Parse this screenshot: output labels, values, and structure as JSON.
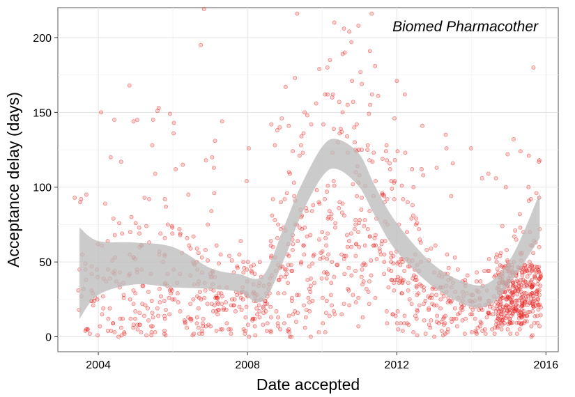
{
  "chart_data": {
    "type": "scatter",
    "title": "",
    "annotation": "Biomed Pharmacother",
    "xlabel": "Date accepted",
    "ylabel": "Acceptance delay (days)",
    "xlim": [
      "2002-12-01",
      "2016-05-01"
    ],
    "ylim": [
      -10,
      220
    ],
    "x_ticks": [
      "2004-01-01",
      "2008-01-01",
      "2012-01-01",
      "2016-01-01"
    ],
    "x_tick_labels": [
      "2004",
      "2008",
      "2012",
      "2016"
    ],
    "y_ticks": [
      0,
      50,
      100,
      150,
      200
    ],
    "y_tick_labels": [
      "0",
      "50",
      "100",
      "150",
      "200"
    ],
    "grid": true,
    "point_color": "#e8201e",
    "point_alpha": 0.2,
    "smooth_fill": "#bdbdbd",
    "smooth_band": [
      {
        "x": "2003-07-01",
        "lo": 12,
        "hi": 73
      },
      {
        "x": "2004-01-01",
        "lo": 28,
        "hi": 64
      },
      {
        "x": "2005-01-01",
        "lo": 35,
        "hi": 63
      },
      {
        "x": "2006-01-01",
        "lo": 33,
        "hi": 60
      },
      {
        "x": "2007-01-01",
        "lo": 32,
        "hi": 46
      },
      {
        "x": "2007-10-01",
        "lo": 30,
        "hi": 42
      },
      {
        "x": "2008-06-01",
        "lo": 24,
        "hi": 41
      },
      {
        "x": "2009-01-01",
        "lo": 53,
        "hi": 75
      },
      {
        "x": "2009-06-01",
        "lo": 80,
        "hi": 100
      },
      {
        "x": "2010-01-01",
        "lo": 107,
        "hi": 127
      },
      {
        "x": "2010-06-01",
        "lo": 112,
        "hi": 132
      },
      {
        "x": "2011-01-01",
        "lo": 100,
        "hi": 122
      },
      {
        "x": "2011-06-01",
        "lo": 81,
        "hi": 101
      },
      {
        "x": "2012-01-01",
        "lo": 57,
        "hi": 76
      },
      {
        "x": "2013-01-01",
        "lo": 33,
        "hi": 48
      },
      {
        "x": "2014-01-01",
        "lo": 20,
        "hi": 35
      },
      {
        "x": "2014-08-01",
        "lo": 23,
        "hi": 38
      },
      {
        "x": "2015-03-01",
        "lo": 40,
        "hi": 57
      },
      {
        "x": "2015-11-01",
        "lo": 66,
        "hi": 96
      }
    ],
    "points_sample": [
      {
        "x": "2003-07-01",
        "y": 45
      },
      {
        "x": "2004-05-01",
        "y": 120
      },
      {
        "x": "2004-11-01",
        "y": 168
      },
      {
        "x": "2006-10-01",
        "y": 195
      },
      {
        "x": "2006-11-01",
        "y": 219
      },
      {
        "x": "2008-06-01",
        "y": 8
      },
      {
        "x": "2009-05-01",
        "y": 216
      },
      {
        "x": "2011-05-01",
        "y": 216
      },
      {
        "x": "2015-01-01",
        "y": 20
      },
      {
        "x": "2015-09-01",
        "y": 180
      }
    ]
  }
}
